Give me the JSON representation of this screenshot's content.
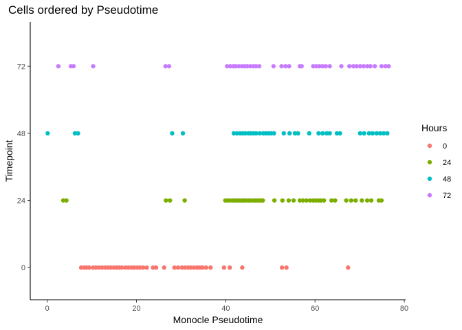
{
  "chart_data": {
    "type": "scatter",
    "title": "Cells ordered by Pseudotime",
    "xlabel": "Monocle Pseudotime",
    "ylabel": "Timepoint",
    "xlim": [
      -3.8,
      80.3
    ],
    "ylim": [
      -11.5,
      87.8
    ],
    "x_ticks": [
      0,
      20,
      40,
      60,
      80
    ],
    "y_ticks": [
      0,
      24,
      48,
      72
    ],
    "x_tick_labels": [
      "0",
      "20",
      "40",
      "60",
      "80"
    ],
    "y_tick_labels": [
      "0",
      "24",
      "48",
      "72"
    ],
    "grid": false,
    "legend": {
      "title": "Hours",
      "position": "right"
    },
    "series": [
      {
        "name": "0",
        "color": "#F8766D",
        "y": 0,
        "x": [
          7.6,
          8.3,
          8.8,
          9.4,
          10.3,
          10.9,
          11.6,
          12.3,
          13.0,
          13.6,
          14.2,
          14.9,
          15.5,
          16.1,
          16.7,
          17.5,
          18.2,
          18.9,
          19.5,
          20.2,
          20.8,
          21.5,
          22.3,
          23.7,
          24.4,
          26.2,
          28.5,
          29.3,
          30.2,
          30.9,
          31.6,
          32.2,
          32.9,
          33.6,
          34.2,
          34.8,
          35.6,
          36.6,
          39.6,
          40.9,
          43.7,
          52.6,
          53.6,
          67.4
        ]
      },
      {
        "name": "24",
        "color": "#7CAE00",
        "y": 24,
        "x": [
          3.6,
          4.3,
          26.6,
          27.5,
          30.8,
          39.9,
          40.4,
          40.9,
          41.5,
          42.0,
          42.5,
          43.1,
          43.6,
          44.1,
          44.6,
          45.2,
          45.7,
          46.3,
          46.8,
          47.3,
          47.8,
          48.3,
          50.9,
          52.7,
          54.1,
          55.2,
          56.6,
          57.3,
          58.1,
          58.9,
          59.6,
          60.2,
          60.8,
          61.3,
          62.0,
          63.7,
          64.5,
          67.0,
          68.1,
          69.1,
          70.5,
          71.7,
          72.6,
          74.3,
          74.9
        ]
      },
      {
        "name": "48",
        "color": "#00BFC4",
        "y": 48,
        "x": [
          0.1,
          6.2,
          6.9,
          28.0,
          30.4,
          41.8,
          42.5,
          43.2,
          43.8,
          44.4,
          45.1,
          45.6,
          46.2,
          46.8,
          47.6,
          48.4,
          49.0,
          49.6,
          50.2,
          50.8,
          53.0,
          54.3,
          55.5,
          56.2,
          58.7,
          60.8,
          61.7,
          62.6,
          63.3,
          64.9,
          65.6,
          70.1,
          71.0,
          72.1,
          72.9,
          73.8,
          74.6,
          75.4,
          76.2
        ]
      },
      {
        "name": "72",
        "color": "#C77CFF",
        "y": 72,
        "x": [
          2.5,
          5.3,
          5.9,
          10.3,
          26.5,
          27.3,
          40.3,
          41.0,
          41.7,
          42.2,
          42.9,
          43.6,
          44.2,
          44.8,
          45.5,
          46.2,
          46.8,
          47.5,
          50.7,
          52.5,
          53.4,
          54.2,
          56.6,
          57.0,
          59.6,
          60.3,
          61.0,
          61.7,
          62.4,
          63.3,
          65.9,
          67.7,
          68.6,
          69.3,
          70.1,
          70.9,
          71.7,
          72.4,
          73.4,
          74.9,
          75.8,
          76.5
        ]
      }
    ]
  }
}
